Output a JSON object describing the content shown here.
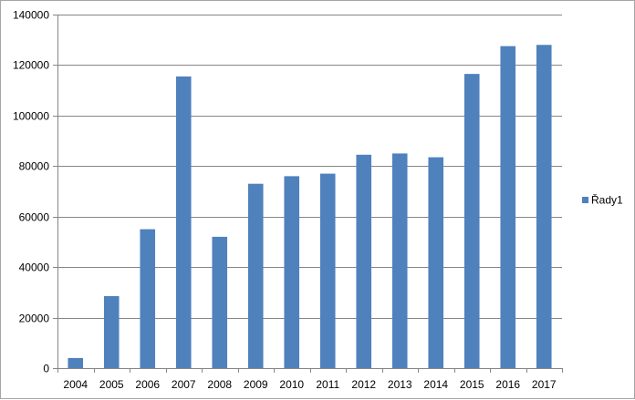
{
  "colors": {
    "bar": "#4F81BD",
    "grid": "#868686",
    "axis": "#868686",
    "background": "#ffffff"
  },
  "chart_data": {
    "type": "bar",
    "title": "",
    "xlabel": "",
    "ylabel": "",
    "categories": [
      "2004",
      "2005",
      "2006",
      "2007",
      "2008",
      "2009",
      "2010",
      "2011",
      "2012",
      "2013",
      "2014",
      "2015",
      "2016",
      "2017"
    ],
    "series": [
      {
        "name": "Řady1",
        "values": [
          4000,
          28500,
          55000,
          115500,
          52000,
          73000,
          76000,
          77000,
          84500,
          85000,
          83500,
          116500,
          127500,
          128000
        ]
      }
    ],
    "ylim": [
      0,
      140000
    ],
    "y_ticks": [
      0,
      20000,
      40000,
      60000,
      80000,
      100000,
      120000,
      140000
    ],
    "y_tick_labels": [
      "0",
      "20000",
      "40000",
      "60000",
      "80000",
      "100000",
      "120000",
      "140000"
    ],
    "grid": true,
    "legend_position": "right"
  }
}
